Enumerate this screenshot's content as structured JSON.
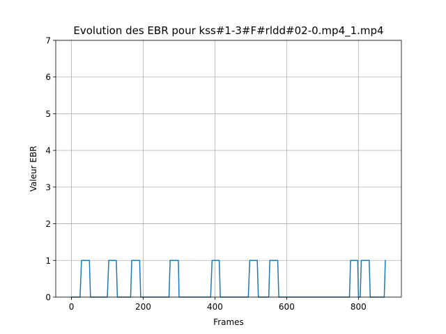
{
  "chart_data": {
    "type": "line",
    "title": "Evolution des EBR pour kss#1-3#F#rldd#02-0.mp4_1.mp4",
    "xlabel": "Frames",
    "ylabel": "Valeur EBR",
    "xlim": [
      -43.8,
      919.8
    ],
    "ylim": [
      0,
      7
    ],
    "xticks": [
      0,
      200,
      400,
      600,
      800
    ],
    "xtick_labels": [
      "0",
      "200",
      "400",
      "600",
      "800"
    ],
    "yticks": [
      0,
      1,
      2,
      3,
      4,
      5,
      6,
      7
    ],
    "ytick_labels": [
      "0",
      "1",
      "2",
      "3",
      "4",
      "5",
      "6",
      "7"
    ],
    "grid": true,
    "legend": "none",
    "series_color": "#1f77b4",
    "series": [
      {
        "x": [
          0,
          24,
          28,
          50,
          53,
          100,
          104,
          125,
          128,
          165,
          168,
          190,
          193,
          272,
          275,
          298,
          300,
          388,
          392,
          412,
          415,
          493,
          497,
          518,
          521,
          550,
          553,
          575,
          578,
          775,
          778,
          798,
          800,
          805,
          808,
          830,
          833,
          872,
          875
        ],
        "y": [
          0,
          0,
          1,
          1,
          0,
          0,
          1,
          1,
          0,
          0,
          1,
          1,
          0,
          0,
          1,
          1,
          0,
          0,
          1,
          1,
          0,
          0,
          1,
          1,
          0,
          0,
          1,
          1,
          0,
          0,
          1,
          1,
          0,
          0,
          1,
          1,
          0,
          0,
          1
        ]
      }
    ]
  }
}
